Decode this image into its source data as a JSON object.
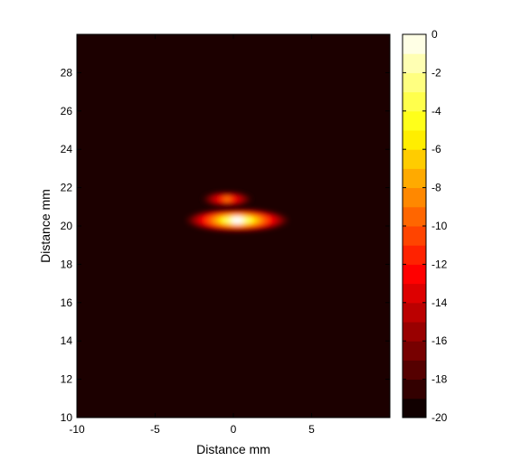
{
  "chart_data": {
    "type": "heatmap",
    "title": "",
    "xlabel": "Distance  mm",
    "ylabel": "Distance  mm",
    "xlim": [
      -10,
      10
    ],
    "ylim": [
      10,
      30
    ],
    "x_ticks": [
      -10,
      -5,
      0,
      5
    ],
    "x_tick_labels": [
      "-10",
      "-5",
      "0",
      "5"
    ],
    "y_ticks": [
      10,
      12,
      14,
      16,
      18,
      20,
      22,
      24,
      26,
      28
    ],
    "y_tick_labels": [
      "10",
      "12",
      "14",
      "16",
      "18",
      "20",
      "22",
      "24",
      "26",
      "28"
    ],
    "colormap": "hot",
    "background_level_db": -20,
    "colorbar": {
      "range": [
        -20,
        0
      ],
      "ticks": [
        0,
        -2,
        -4,
        -6,
        -8,
        -10,
        -12,
        -14,
        -16,
        -18,
        -20
      ],
      "tick_labels": [
        "0",
        "-2",
        "-4",
        "-6",
        "-8",
        "-10",
        "-12",
        "-14",
        "-16",
        "-18",
        "-20"
      ],
      "levels": 20
    },
    "hotspots": [
      {
        "x_range": [
          -3.0,
          3.5
        ],
        "y_range": [
          19.7,
          20.9
        ],
        "peak_db": 0
      },
      {
        "x_range": [
          -2.0,
          1.2
        ],
        "y_range": [
          21.0,
          21.8
        ],
        "peak_db": -9
      }
    ],
    "colors": {
      "background": "#1c0000",
      "frame": "#000000"
    }
  }
}
